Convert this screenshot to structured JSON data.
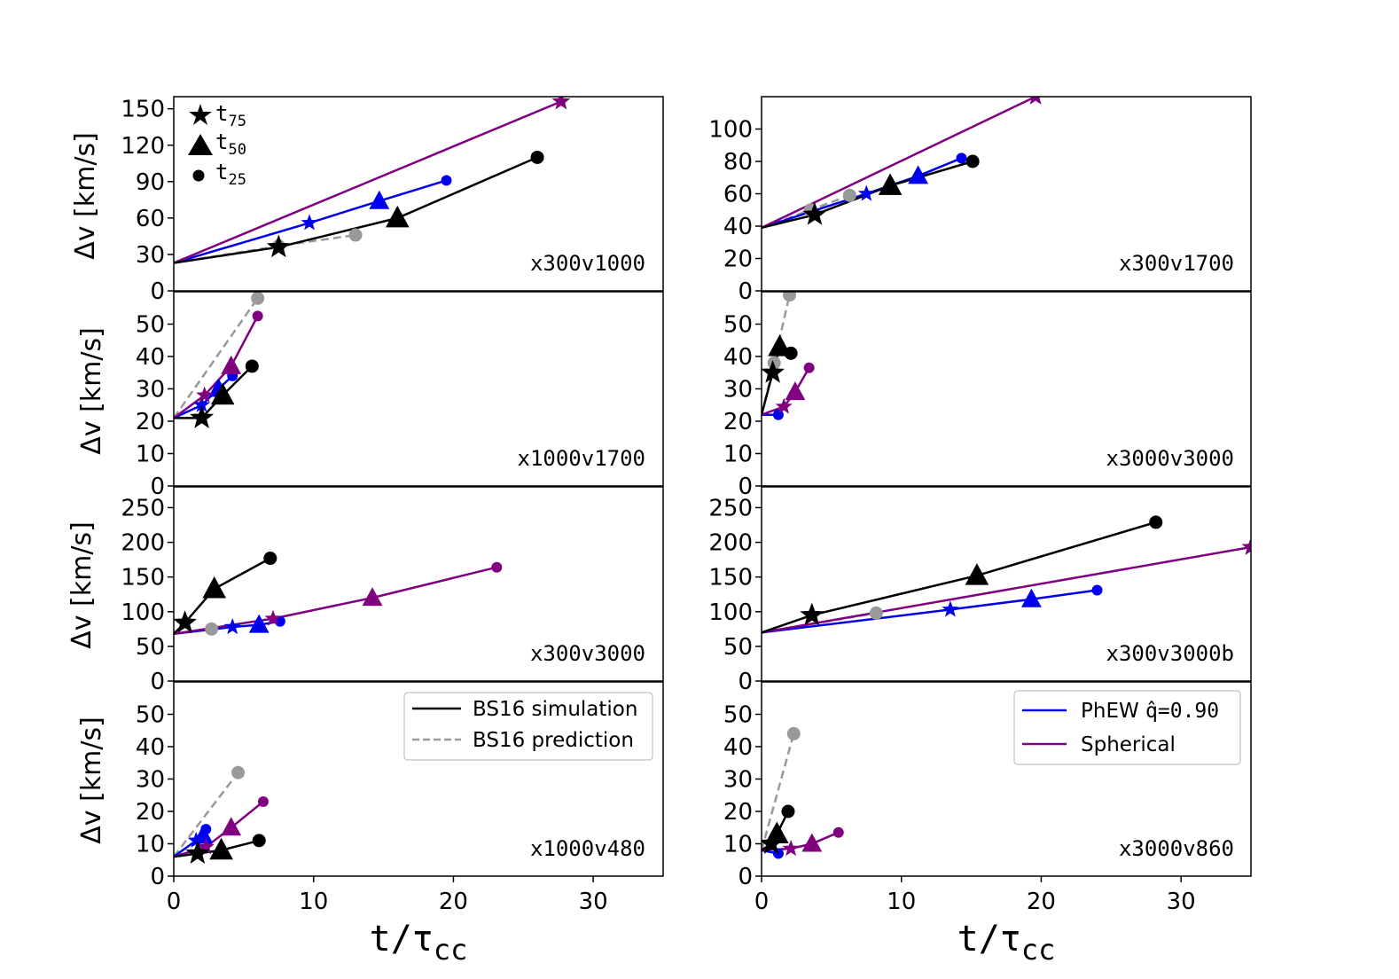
{
  "figure": {
    "xlabel_main": "t/τ",
    "xlabel_sub": "cc",
    "ylabel": "Δv [km/s]"
  },
  "marker_legend": {
    "t75_main": "t",
    "t75_sub": "75",
    "t50_main": "t",
    "t50_sub": "50",
    "t25_main": "t",
    "t25_sub": "25"
  },
  "legend_left": {
    "simulation": "BS16 simulation",
    "prediction": "BS16 prediction"
  },
  "legend_right": {
    "phew_prefix": "PhEW ",
    "phew_q": "q̂=0.90",
    "spherical": "Spherical"
  },
  "colors": {
    "simulation": "#000000",
    "prediction": "#999999",
    "phew": "#0000ee",
    "spherical": "#800080"
  },
  "chart_data": [
    {
      "type": "line",
      "title": "x300v1000",
      "col": 0,
      "row": 0,
      "xlim": [
        0,
        35
      ],
      "ylim": [
        0,
        160
      ],
      "xticks": [
        0,
        10,
        20,
        30
      ],
      "yticks": [
        0,
        30,
        60,
        90,
        120,
        150
      ],
      "v0": 23,
      "series": [
        {
          "name": "BS16 prediction",
          "key": "prediction",
          "points": [
            [
              7.5,
              37
            ],
            [
              13,
              46
            ]
          ]
        },
        {
          "name": "BS16 simulation",
          "key": "simulation",
          "points": [
            [
              7.5,
              36
            ],
            [
              16,
              60
            ],
            [
              26,
              110
            ]
          ]
        },
        {
          "name": "PhEW",
          "key": "phew",
          "points": [
            [
              9.7,
              56
            ],
            [
              14.7,
              74
            ],
            [
              19.5,
              91
            ]
          ]
        },
        {
          "name": "Spherical",
          "key": "spherical",
          "points": [
            [
              27.7,
              156
            ]
          ]
        }
      ]
    },
    {
      "type": "line",
      "title": "x300v1700",
      "col": 1,
      "row": 0,
      "xlim": [
        0,
        35
      ],
      "ylim": [
        0,
        120
      ],
      "xticks": [
        0,
        10,
        20,
        30
      ],
      "yticks": [
        0,
        20,
        40,
        60,
        80,
        100
      ],
      "v0": 39,
      "series": [
        {
          "name": "BS16 prediction",
          "key": "prediction",
          "points": [
            [
              3.5,
              50
            ],
            [
              6.3,
              59
            ]
          ]
        },
        {
          "name": "BS16 simulation",
          "key": "simulation",
          "points": [
            [
              3.8,
              47
            ],
            [
              9.2,
              65
            ],
            [
              15.1,
              80
            ]
          ]
        },
        {
          "name": "PhEW",
          "key": "phew",
          "points": [
            [
              7.5,
              60
            ],
            [
              11.2,
              71
            ],
            [
              14.3,
              82
            ]
          ]
        },
        {
          "name": "Spherical",
          "key": "spherical",
          "points": [
            [
              19.6,
              120
            ]
          ]
        }
      ]
    },
    {
      "type": "line",
      "title": "x1000v1700",
      "col": 0,
      "row": 1,
      "xlim": [
        0,
        35
      ],
      "ylim": [
        0,
        60
      ],
      "xticks": [
        0,
        10,
        20,
        30
      ],
      "yticks": [
        0,
        10,
        20,
        30,
        40,
        50
      ],
      "v0": 21,
      "series": [
        {
          "name": "BS16 prediction",
          "key": "prediction",
          "points": [
            [
              6,
              58
            ]
          ]
        },
        {
          "name": "BS16 simulation",
          "key": "simulation",
          "points": [
            [
              2,
              21
            ],
            [
              3.5,
              28
            ],
            [
              5.6,
              37
            ]
          ]
        },
        {
          "name": "PhEW",
          "key": "phew",
          "points": [
            [
              2,
              25
            ],
            [
              3.2,
              30
            ],
            [
              4.2,
              34
            ]
          ]
        },
        {
          "name": "Spherical",
          "key": "spherical",
          "points": [
            [
              2.2,
              28
            ],
            [
              4.1,
              37
            ],
            [
              6,
              52.5
            ]
          ]
        }
      ]
    },
    {
      "type": "line",
      "title": "x3000v3000",
      "col": 1,
      "row": 1,
      "xlim": [
        0,
        35
      ],
      "ylim": [
        0,
        60
      ],
      "xticks": [
        0,
        10,
        20,
        30
      ],
      "yticks": [
        0,
        10,
        20,
        30,
        40,
        50
      ],
      "v0": 22,
      "series": [
        {
          "name": "BS16 prediction",
          "key": "prediction",
          "points": [
            [
              0.9,
              38
            ],
            [
              2,
              59
            ]
          ]
        },
        {
          "name": "BS16 simulation",
          "key": "simulation",
          "points": [
            [
              0.8,
              35
            ],
            [
              1.3,
              43
            ],
            [
              2.1,
              41
            ]
          ]
        },
        {
          "name": "PhEW",
          "key": "phew",
          "points": [
            [
              1.2,
              22
            ]
          ]
        },
        {
          "name": "Spherical",
          "key": "spherical",
          "points": [
            [
              1.6,
              24.5
            ],
            [
              2.4,
              29
            ],
            [
              3.4,
              36.5
            ]
          ]
        }
      ]
    },
    {
      "type": "line",
      "title": "x300v3000",
      "col": 0,
      "row": 2,
      "xlim": [
        0,
        35
      ],
      "ylim": [
        0,
        280
      ],
      "xticks": [
        0,
        10,
        20,
        30
      ],
      "yticks": [
        0,
        50,
        100,
        150,
        200,
        250
      ],
      "v0": 68,
      "series": [
        {
          "name": "BS16 prediction",
          "key": "prediction",
          "points": [
            [
              2.7,
              75
            ]
          ]
        },
        {
          "name": "BS16 simulation",
          "key": "simulation",
          "points": [
            [
              0.8,
              84
            ],
            [
              2.9,
              133
            ],
            [
              6.9,
              177
            ]
          ]
        },
        {
          "name": "PhEW",
          "key": "phew",
          "points": [
            [
              4.2,
              78
            ],
            [
              6.1,
              81
            ],
            [
              7.6,
              86
            ]
          ]
        },
        {
          "name": "Spherical",
          "key": "spherical",
          "points": [
            [
              7.1,
              90
            ],
            [
              14.2,
              120
            ],
            [
              23.1,
              164
            ]
          ]
        }
      ]
    },
    {
      "type": "line",
      "title": "x300v3000b",
      "col": 1,
      "row": 2,
      "xlim": [
        0,
        35
      ],
      "ylim": [
        0,
        280
      ],
      "xticks": [
        0,
        10,
        20,
        30
      ],
      "yticks": [
        0,
        50,
        100,
        150,
        200,
        250
      ],
      "v0": 70,
      "series": [
        {
          "name": "BS16 prediction",
          "key": "prediction",
          "points": [
            [
              8.2,
              98
            ]
          ]
        },
        {
          "name": "BS16 simulation",
          "key": "simulation",
          "points": [
            [
              3.6,
              95
            ],
            [
              15.4,
              152
            ],
            [
              28.2,
              229
            ]
          ]
        },
        {
          "name": "PhEW",
          "key": "phew",
          "points": [
            [
              13.5,
              103
            ],
            [
              19.3,
              118
            ],
            [
              24,
              131
            ]
          ]
        },
        {
          "name": "Spherical",
          "key": "spherical",
          "points": [
            [
              35,
              193
            ]
          ]
        }
      ]
    },
    {
      "type": "line",
      "title": "x1000v480",
      "col": 0,
      "row": 3,
      "xlim": [
        0,
        35
      ],
      "ylim": [
        0,
        60
      ],
      "xticks": [
        0,
        10,
        20,
        30
      ],
      "yticks": [
        0,
        10,
        20,
        30,
        40,
        50
      ],
      "v0": 6,
      "series": [
        {
          "name": "BS16 prediction",
          "key": "prediction",
          "points": [
            [
              4.6,
              32
            ]
          ]
        },
        {
          "name": "BS16 simulation",
          "key": "simulation",
          "points": [
            [
              1.7,
              7
            ],
            [
              3.4,
              8
            ],
            [
              6.1,
              11
            ]
          ]
        },
        {
          "name": "PhEW",
          "key": "phew",
          "points": [
            [
              1.6,
              11
            ],
            [
              2.1,
              12.5
            ],
            [
              2.3,
              14.5
            ]
          ]
        },
        {
          "name": "Spherical",
          "key": "spherical",
          "points": [
            [
              2.3,
              9
            ],
            [
              4.1,
              15
            ],
            [
              6.4,
              23
            ]
          ]
        }
      ]
    },
    {
      "type": "line",
      "title": "x3000v860",
      "col": 1,
      "row": 3,
      "xlim": [
        0,
        35
      ],
      "ylim": [
        0,
        60
      ],
      "xticks": [
        0,
        10,
        20,
        30
      ],
      "yticks": [
        0,
        10,
        20,
        30,
        40,
        50
      ],
      "v0": 8,
      "series": [
        {
          "name": "BS16 prediction",
          "key": "prediction",
          "points": [
            [
              2.3,
              44
            ]
          ]
        },
        {
          "name": "BS16 simulation",
          "key": "simulation",
          "points": [
            [
              0.7,
              10
            ],
            [
              1.1,
              13
            ],
            [
              1.9,
              20
            ]
          ]
        },
        {
          "name": "PhEW",
          "key": "phew",
          "points": [
            [
              1.2,
              7
            ]
          ]
        },
        {
          "name": "Spherical",
          "key": "spherical",
          "points": [
            [
              2.1,
              8.5
            ],
            [
              3.6,
              10
            ],
            [
              5.5,
              13.5
            ]
          ]
        }
      ]
    }
  ]
}
